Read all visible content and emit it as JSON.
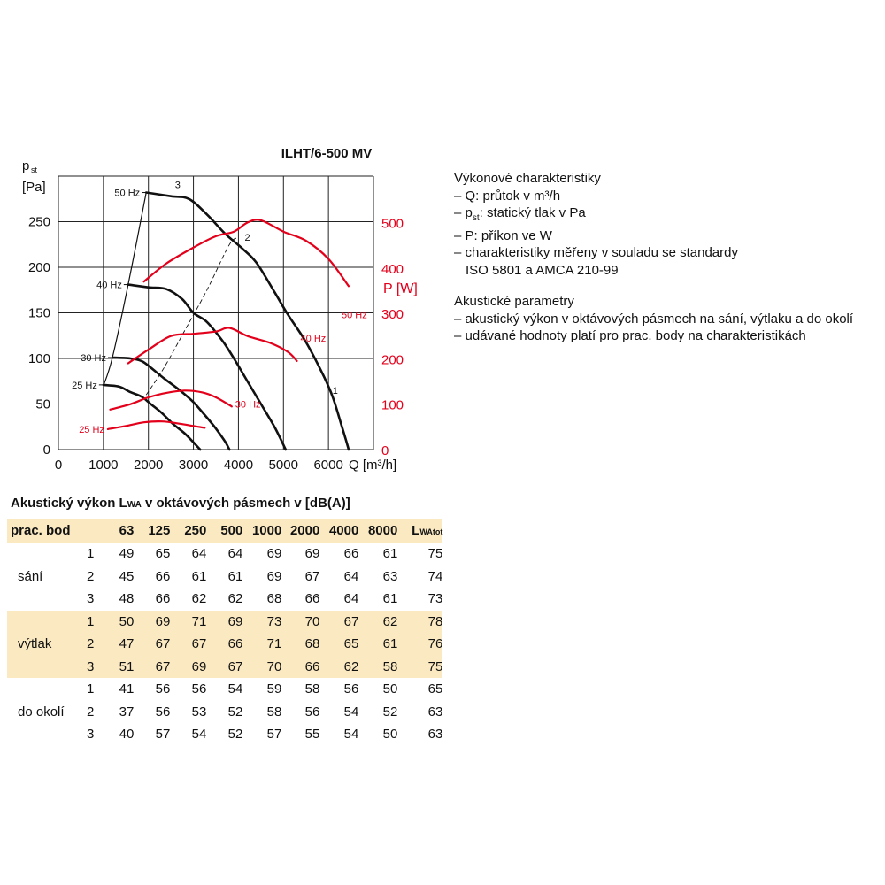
{
  "chart_data": {
    "type": "line",
    "title": "ILHT/6-500 MV",
    "x_axis": {
      "label_main": "Q",
      "label_unit": "[m³/h]",
      "range": [
        0,
        7000
      ],
      "ticks": [
        0,
        1000,
        2000,
        3000,
        4000,
        5000,
        6000
      ]
    },
    "y_axis_left": {
      "label_main": "p",
      "label_sub": "st",
      "label_unit": "[Pa]",
      "range": [
        0,
        300
      ],
      "ticks": [
        0,
        50,
        100,
        150,
        200,
        250
      ]
    },
    "y_axis_right": {
      "label": "P [W]",
      "range": [
        0,
        650
      ],
      "ticks": [
        0,
        100,
        200,
        300,
        400,
        500
      ]
    },
    "grid": true,
    "pressure_series": [
      {
        "name": "50 Hz",
        "points": [
          [
            1950,
            282
          ],
          [
            2500,
            278
          ],
          [
            2900,
            275
          ],
          [
            3300,
            258
          ],
          [
            3700,
            237
          ],
          [
            4100,
            220
          ],
          [
            4400,
            205
          ],
          [
            4800,
            173
          ],
          [
            5100,
            148
          ],
          [
            5500,
            118
          ],
          [
            5900,
            80
          ],
          [
            6100,
            57
          ],
          [
            6300,
            25
          ],
          [
            6450,
            0
          ]
        ]
      },
      {
        "name": "40 Hz",
        "points": [
          [
            1550,
            181
          ],
          [
            2000,
            178
          ],
          [
            2400,
            176
          ],
          [
            2750,
            165
          ],
          [
            3000,
            150
          ],
          [
            3300,
            140
          ],
          [
            3650,
            119
          ],
          [
            3900,
            100
          ],
          [
            4200,
            75
          ],
          [
            4500,
            50
          ],
          [
            4800,
            25
          ],
          [
            5050,
            0
          ]
        ]
      },
      {
        "name": "30 Hz",
        "points": [
          [
            1200,
            101
          ],
          [
            1600,
            100
          ],
          [
            1850,
            97
          ],
          [
            2050,
            90
          ],
          [
            2350,
            78
          ],
          [
            2700,
            65
          ],
          [
            3000,
            52
          ],
          [
            3250,
            38
          ],
          [
            3500,
            23
          ],
          [
            3700,
            9
          ],
          [
            3800,
            0
          ]
        ]
      },
      {
        "name": "25 Hz",
        "points": [
          [
            1000,
            71
          ],
          [
            1350,
            69
          ],
          [
            1600,
            63
          ],
          [
            1850,
            58
          ],
          [
            2050,
            50
          ],
          [
            2300,
            40
          ],
          [
            2550,
            28
          ],
          [
            2800,
            18
          ],
          [
            3000,
            8
          ],
          [
            3150,
            0
          ]
        ]
      }
    ],
    "system_curves": [
      {
        "label": "3",
        "points": [
          [
            1000,
            70
          ],
          [
            1200,
            101
          ],
          [
            1550,
            181
          ],
          [
            1950,
            282
          ]
        ]
      },
      {
        "label": "2",
        "points": [
          [
            1950,
            60
          ],
          [
            2350,
            90
          ],
          [
            2800,
            130
          ],
          [
            3300,
            175
          ],
          [
            3800,
            225
          ],
          [
            4000,
            232
          ]
        ],
        "dashed": true
      }
    ],
    "curve_labels": [
      {
        "text": "3",
        "x": 2650,
        "y": 287
      },
      {
        "text": "2",
        "x": 4200,
        "y": 229
      },
      {
        "text": "1",
        "x": 6150,
        "y": 61
      }
    ],
    "power_series": [
      {
        "name": "50 Hz",
        "points": [
          [
            1900,
            370
          ],
          [
            2400,
            410
          ],
          [
            3000,
            445
          ],
          [
            3500,
            470
          ],
          [
            3900,
            480
          ],
          [
            4200,
            500
          ],
          [
            4500,
            505
          ],
          [
            5000,
            480
          ],
          [
            5500,
            460
          ],
          [
            6000,
            420
          ],
          [
            6450,
            360
          ]
        ]
      },
      {
        "name": "40 Hz",
        "points": [
          [
            1550,
            190
          ],
          [
            2000,
            220
          ],
          [
            2500,
            250
          ],
          [
            3000,
            255
          ],
          [
            3500,
            260
          ],
          [
            3800,
            268
          ],
          [
            4200,
            250
          ],
          [
            4700,
            235
          ],
          [
            5100,
            215
          ],
          [
            5300,
            195
          ]
        ]
      },
      {
        "name": "30 Hz",
        "points": [
          [
            1150,
            88
          ],
          [
            1600,
            100
          ],
          [
            2000,
            115
          ],
          [
            2400,
            125
          ],
          [
            2800,
            130
          ],
          [
            3200,
            126
          ],
          [
            3500,
            115
          ],
          [
            3850,
            95
          ]
        ]
      },
      {
        "name": "25 Hz",
        "points": [
          [
            1100,
            45
          ],
          [
            1500,
            52
          ],
          [
            1900,
            60
          ],
          [
            2300,
            62
          ],
          [
            2700,
            57
          ],
          [
            3000,
            52
          ],
          [
            3250,
            48
          ]
        ]
      }
    ]
  },
  "info": {
    "performance_heading": "Výkonové charakteristiky",
    "performance_q": "– Q: průtok v m³/h",
    "performance_p_dash": "– p",
    "performance_p_sub": "st",
    "performance_p_rest": ": statický tlak v Pa",
    "performance_power": "– P: příkon ve W",
    "performance_standards": "– charakteristiky měřeny v souladu se standardy",
    "performance_standards_cont": "ISO 5801 a AMCA 210-99",
    "acoustic_heading": "Akustické parametry",
    "acoustic_line1": "– akustický výkon v oktávových pásmech na sání, výtlaku a do okolí",
    "acoustic_line2": "– udávané hodnoty platí pro prac. body na charakteristikách"
  },
  "table": {
    "title_pre": "Akustický výkon L",
    "title_sub": "WA",
    "title_post": " v oktávových pásmech v [dB(A)]",
    "col_point": "prac. bod",
    "bands": [
      "63",
      "125",
      "250",
      "500",
      "1000",
      "2000",
      "4000",
      "8000"
    ],
    "total_main": "L",
    "total_sub": "WAtot",
    "groups": [
      {
        "name": "sání",
        "rows": [
          {
            "point": "1",
            "values": [
              "49",
              "65",
              "64",
              "64",
              "69",
              "69",
              "66",
              "61"
            ],
            "total": "75"
          },
          {
            "point": "2",
            "values": [
              "45",
              "66",
              "61",
              "61",
              "69",
              "67",
              "64",
              "63"
            ],
            "total": "74"
          },
          {
            "point": "3",
            "values": [
              "48",
              "66",
              "62",
              "62",
              "68",
              "66",
              "64",
              "61"
            ],
            "total": "73"
          }
        ]
      },
      {
        "name": "výtlak",
        "rows": [
          {
            "point": "1",
            "values": [
              "50",
              "69",
              "71",
              "69",
              "73",
              "70",
              "67",
              "62"
            ],
            "total": "78"
          },
          {
            "point": "2",
            "values": [
              "47",
              "67",
              "67",
              "66",
              "71",
              "68",
              "65",
              "61"
            ],
            "total": "76"
          },
          {
            "point": "3",
            "values": [
              "51",
              "67",
              "69",
              "67",
              "70",
              "66",
              "62",
              "58"
            ],
            "total": "75"
          }
        ]
      },
      {
        "name": "do okolí",
        "rows": [
          {
            "point": "1",
            "values": [
              "41",
              "56",
              "56",
              "54",
              "59",
              "58",
              "56",
              "50"
            ],
            "total": "65"
          },
          {
            "point": "2",
            "values": [
              "37",
              "56",
              "53",
              "52",
              "58",
              "56",
              "54",
              "52"
            ],
            "total": "63"
          },
          {
            "point": "3",
            "values": [
              "40",
              "57",
              "54",
              "52",
              "57",
              "55",
              "54",
              "50"
            ],
            "total": "63"
          }
        ]
      }
    ]
  },
  "colors": {
    "pressure": "#111111",
    "power": "#e3001b",
    "grid": "#222222",
    "table_band": "#fbe9c2"
  }
}
